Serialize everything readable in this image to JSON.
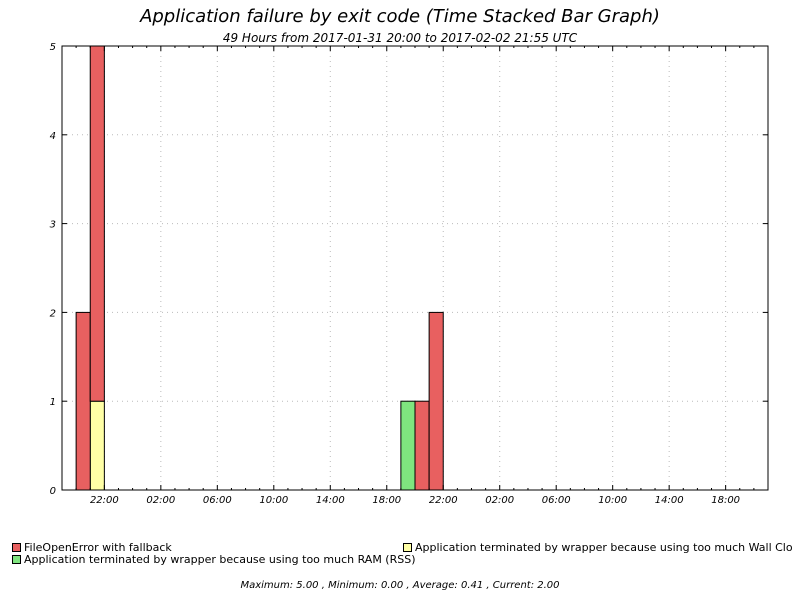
{
  "chart_data": {
    "type": "bar",
    "stacked": true,
    "title": "Application failure by exit code (Time Stacked Bar Graph)",
    "subtitle": "49 Hours from 2017-01-31 20:00 to 2017-02-02 21:55 UTC",
    "xlabel": "",
    "ylabel": "",
    "ylim": [
      0,
      5
    ],
    "yticks": [
      "0",
      "1",
      "2",
      "3",
      "4",
      "5"
    ],
    "x_tick_labels": [
      "22:00",
      "02:00",
      "06:00",
      "10:00",
      "14:00",
      "18:00",
      "22:00",
      "02:00",
      "06:00",
      "10:00",
      "14:00",
      "18:00"
    ],
    "x_tick_hours": [
      2,
      6,
      10,
      14,
      18,
      22,
      26,
      30,
      34,
      38,
      42,
      46
    ],
    "x_range_hours": [
      -1,
      49
    ],
    "series": [
      {
        "name": "Application terminated by wrapper because using too much Wall Clock time",
        "color": "#ffffa6",
        "points": [
          {
            "hour": 1,
            "value": 0
          },
          {
            "hour": 2,
            "value": 1
          }
        ]
      },
      {
        "name": "Application terminated by wrapper because using too much RAM (RSS)",
        "color": "#7fe57f",
        "points": [
          {
            "hour": 24,
            "value": 1
          }
        ]
      },
      {
        "name": "FileOpenError with fallback",
        "color": "#e86060",
        "points": [
          {
            "hour": 1,
            "value": 2
          },
          {
            "hour": 2,
            "value": 4
          },
          {
            "hour": 25,
            "value": 1
          },
          {
            "hour": 26,
            "value": 2
          }
        ]
      }
    ]
  },
  "legend": [
    {
      "label": "FileOpenError with fallback",
      "color": "#e86060"
    },
    {
      "label": "Application terminated by wrapper because using too much Wall Clo",
      "color": "#ffffa6"
    },
    {
      "label": "Application terminated by wrapper because using too much RAM (RSS)",
      "color": "#7fe57f"
    }
  ],
  "stats": "Maximum: 5.00 , Minimum: 0.00 , Average: 0.41 , Current: 2.00"
}
